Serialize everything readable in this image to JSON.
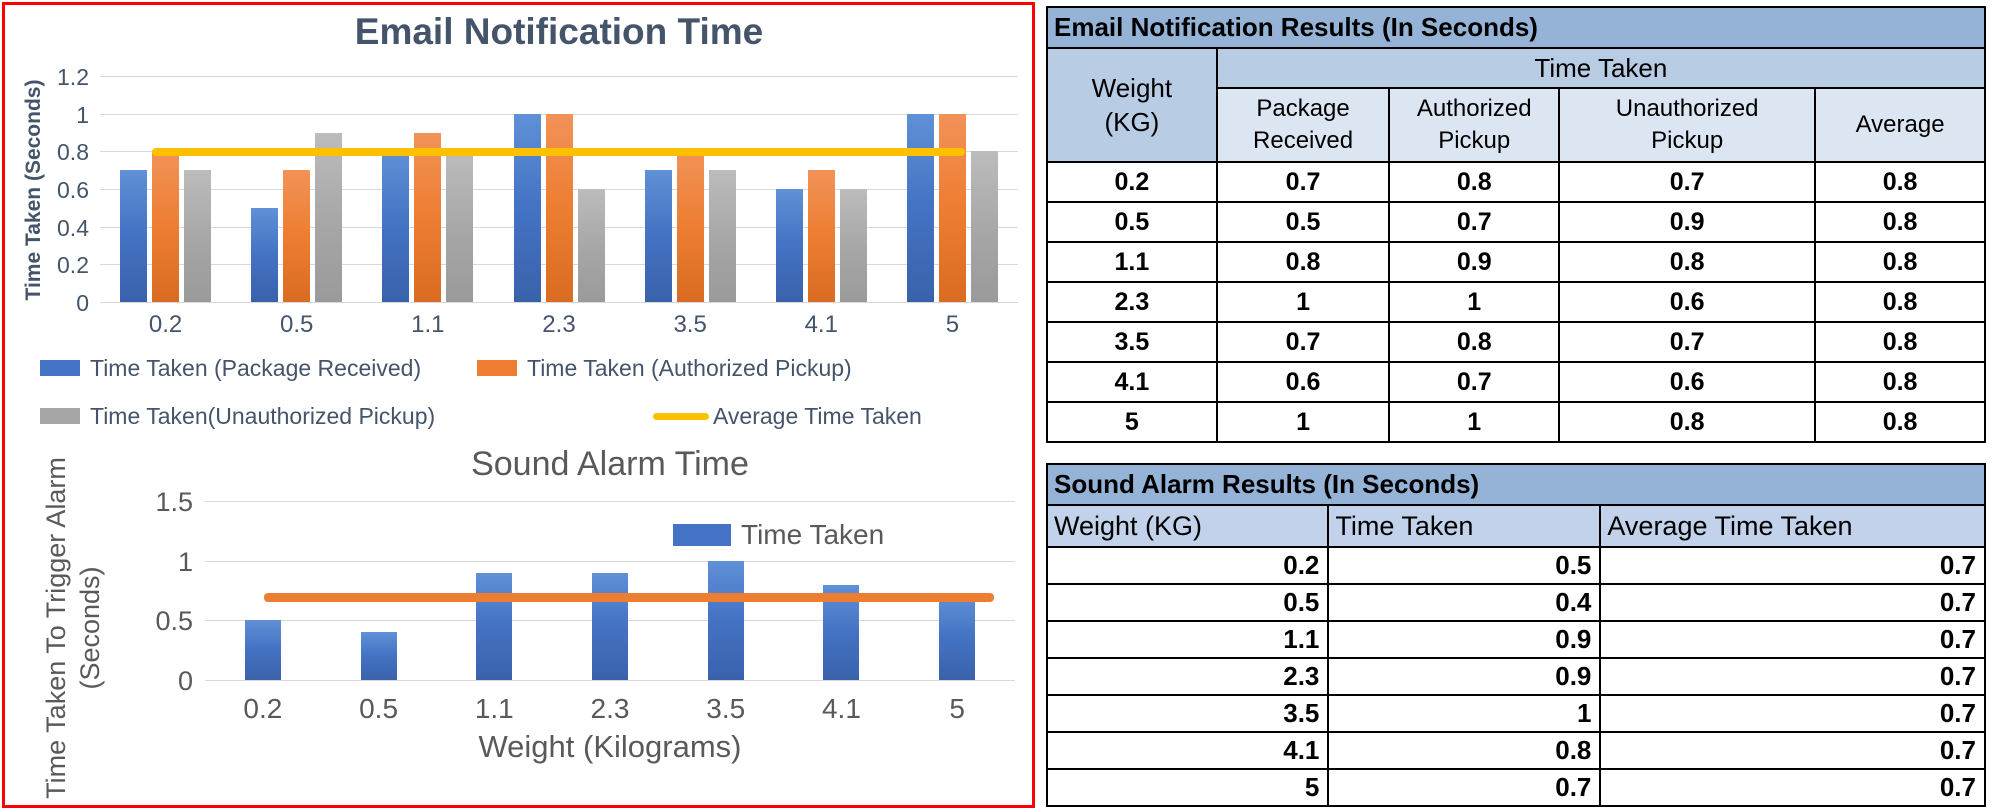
{
  "colors": {
    "blue": "#4472C4",
    "orange": "#ED7D31",
    "gray": "#A5A5A5",
    "yellow": "#FFC000",
    "chart1_text": "#44546A",
    "chart2_text": "#595959",
    "red_border": "#FF0000",
    "gridline": "#D9D9D9",
    "table_title_bg": "#95B3D7",
    "table_group_bg": "#B8CCE4",
    "table_subhead_bg": "#DCE6F2",
    "table2_head_bg": "#C2D2EA"
  },
  "chart_data": [
    {
      "type": "bar",
      "title": "Email Notification Time",
      "ylabel": "Time Taken (Seconds)",
      "xlabel": "",
      "categories": [
        "0.2",
        "0.5",
        "1.1",
        "2.3",
        "3.5",
        "4.1",
        "5"
      ],
      "ylim": [
        0,
        1.2
      ],
      "yticks": [
        0,
        0.2,
        0.4,
        0.6,
        0.8,
        1,
        1.2
      ],
      "ytick_labels": [
        "0",
        "0.2",
        "0.4",
        "0.6",
        "0.8",
        "1",
        "1.2"
      ],
      "grid": true,
      "legend_position": "bottom",
      "series": [
        {
          "name": "Time Taken (Package Received)",
          "color_key": "blue",
          "values": [
            0.7,
            0.5,
            0.8,
            1,
            0.7,
            0.6,
            1
          ]
        },
        {
          "name": "Time Taken (Authorized Pickup)",
          "color_key": "orange",
          "values": [
            0.8,
            0.7,
            0.9,
            1,
            0.8,
            0.7,
            1
          ]
        },
        {
          "name": "Time Taken(Unauthorized Pickup)",
          "color_key": "gray",
          "values": [
            0.7,
            0.9,
            0.8,
            0.6,
            0.7,
            0.6,
            0.8
          ]
        }
      ],
      "average_line": {
        "name": "Average Time Taken",
        "value": 0.8,
        "color_key": "yellow"
      }
    },
    {
      "type": "bar",
      "title": "Sound Alarm Time",
      "ylabel": "Time Taken To Trigger Alarm (Seconds)",
      "ylabel_lines": [
        "Time Taken To Trigger Alarm",
        "(Seconds)"
      ],
      "xlabel": "Weight (Kilograms)",
      "categories": [
        "0.2",
        "0.5",
        "1.1",
        "2.3",
        "3.5",
        "4.1",
        "5"
      ],
      "ylim": [
        0,
        1.5
      ],
      "yticks": [
        0,
        0.5,
        1,
        1.5
      ],
      "ytick_labels": [
        "0",
        "0.5",
        "1",
        "1.5"
      ],
      "grid": true,
      "legend_position": "inside-top-right",
      "series": [
        {
          "name": "Time Taken",
          "color_key": "blue",
          "values": [
            0.5,
            0.4,
            0.9,
            0.9,
            1,
            0.8,
            0.7
          ]
        }
      ],
      "average_line": {
        "name": "",
        "value": 0.7,
        "color_key": "orange"
      }
    }
  ],
  "tables": [
    {
      "title": "Email Notification Results (In Seconds)",
      "col1_header": "Weight (KG)",
      "group_header": "Time Taken",
      "sub_headers": [
        "Package Received",
        "Authorized Pickup",
        "Unauthorized Pickup",
        "Average"
      ],
      "rows": [
        [
          "0.2",
          "0.7",
          "0.8",
          "0.7",
          "0.8"
        ],
        [
          "0.5",
          "0.5",
          "0.7",
          "0.9",
          "0.8"
        ],
        [
          "1.1",
          "0.8",
          "0.9",
          "0.8",
          "0.8"
        ],
        [
          "2.3",
          "1",
          "1",
          "0.6",
          "0.8"
        ],
        [
          "3.5",
          "0.7",
          "0.8",
          "0.7",
          "0.8"
        ],
        [
          "4.1",
          "0.6",
          "0.7",
          "0.6",
          "0.8"
        ],
        [
          "5",
          "1",
          "1",
          "0.8",
          "0.8"
        ]
      ]
    },
    {
      "title": "Sound Alarm Results (In Seconds)",
      "headers": [
        "Weight (KG)",
        "Time Taken",
        "Average Time Taken"
      ],
      "rows": [
        [
          "0.2",
          "0.5",
          "0.7"
        ],
        [
          "0.5",
          "0.4",
          "0.7"
        ],
        [
          "1.1",
          "0.9",
          "0.7"
        ],
        [
          "2.3",
          "0.9",
          "0.7"
        ],
        [
          "3.5",
          "1",
          "0.7"
        ],
        [
          "4.1",
          "0.8",
          "0.7"
        ],
        [
          "5",
          "0.7",
          "0.7"
        ]
      ]
    }
  ]
}
